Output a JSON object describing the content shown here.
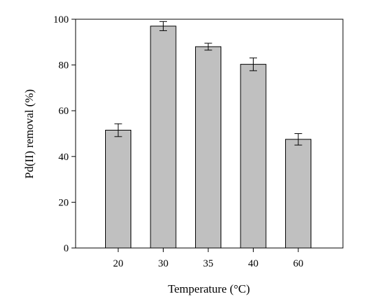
{
  "chart_data": {
    "type": "bar",
    "categories": [
      "20",
      "30",
      "35",
      "40",
      "60"
    ],
    "values": [
      51.5,
      97,
      88,
      80.3,
      47.5
    ],
    "errors": [
      2.8,
      2.0,
      1.5,
      2.8,
      2.5
    ],
    "title": "",
    "xlabel": "Temperature (°C)",
    "ylabel": "Pd(II) removal (%)",
    "ylim": [
      0,
      100
    ],
    "yticks": [
      0,
      20,
      40,
      60,
      80,
      100
    ],
    "grid": false,
    "bar_color": "#c0c0c0",
    "edge_color": "#000000"
  }
}
